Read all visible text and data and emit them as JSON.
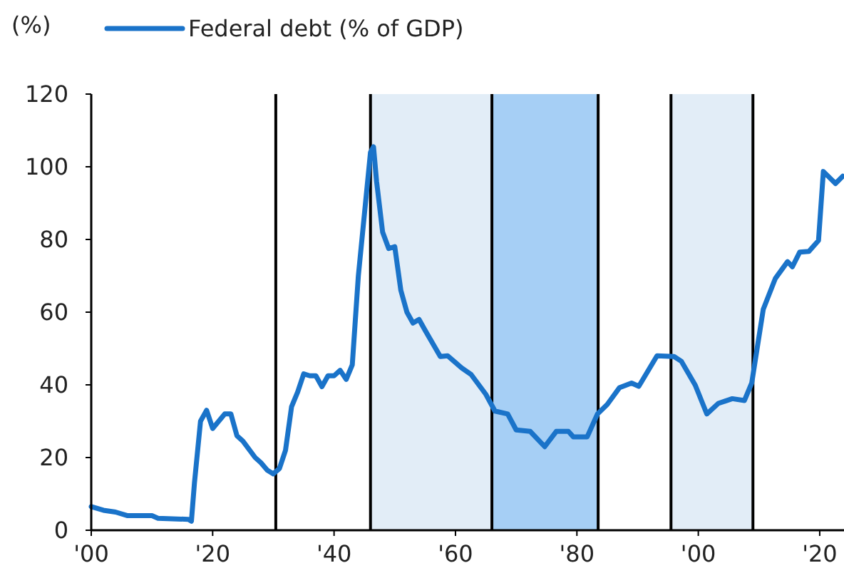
{
  "chart_data": {
    "type": "line",
    "ylabel": "(%)",
    "legend": "top",
    "x": [
      1900,
      1902,
      1904,
      1906,
      1910,
      1911,
      1916,
      1916.5,
      1917,
      1918,
      1919,
      1920,
      1921,
      1922,
      1923,
      1924,
      1925,
      1927,
      1928,
      1929,
      1930,
      1931,
      1932,
      1933,
      1934,
      1935,
      1936,
      1937,
      1938,
      1939,
      1940,
      1941,
      1942,
      1943,
      1944,
      1945,
      1946,
      1946.5,
      1947,
      1948,
      1949,
      1950,
      1951,
      1952,
      1953,
      1954,
      1955,
      1957.5,
      1958.7,
      1961,
      1962.6,
      1965,
      1966.5,
      1968.6,
      1970,
      1972.3,
      1974.7,
      1976.6,
      1978.6,
      1979.4,
      1981.7,
      1983.4,
      1985,
      1987,
      1989,
      1990.2,
      1993.2,
      1996,
      1997.2,
      1999.5,
      2001.4,
      2003.3,
      2005.6,
      2007.6,
      2008.8,
      2010.7,
      2012.7,
      2014.7,
      2015.5,
      2016.7,
      2018.2,
      2019.8,
      2020.6,
      2022.6,
      2023.8
    ],
    "series": [
      {
        "name": "Federal debt (% of GDP)",
        "color": "#1a73c9",
        "values": [
          6.5,
          5.5,
          5,
          4,
          4,
          3.3,
          3,
          2.5,
          13,
          30,
          33,
          28,
          30,
          32,
          32,
          26,
          24.5,
          20,
          18.5,
          16.5,
          15.5,
          17,
          22,
          34,
          38,
          43,
          42.5,
          42.5,
          39.5,
          42.5,
          42.5,
          44,
          41.5,
          45.5,
          70,
          87,
          104,
          105.5,
          96,
          82,
          77.5,
          78,
          66,
          60,
          57,
          58,
          55,
          47.8,
          48,
          44.7,
          42.8,
          37.4,
          32.8,
          32,
          27.6,
          27.2,
          23,
          27.2,
          27.2,
          25.7,
          25.7,
          32,
          34.6,
          39.2,
          40.5,
          39.6,
          48,
          47.8,
          46.5,
          39.9,
          32,
          34.9,
          36.2,
          35.7,
          40.5,
          60.8,
          69.3,
          73.9,
          72.5,
          76.5,
          76.7,
          79.7,
          98.7,
          95.4,
          97.4
        ]
      }
    ],
    "xlim": [
      1900,
      2024
    ],
    "xticks": [
      {
        "value": 1900,
        "label": "'00"
      },
      {
        "value": 1920,
        "label": "'20"
      },
      {
        "value": 1940,
        "label": "'40"
      },
      {
        "value": 1960,
        "label": "'60"
      },
      {
        "value": 1980,
        "label": "'80"
      },
      {
        "value": 2000,
        "label": "'00"
      },
      {
        "value": 2020,
        "label": "'20"
      }
    ],
    "ylim": [
      0,
      120
    ],
    "yticks": [
      0,
      20,
      40,
      60,
      80,
      100,
      120
    ],
    "bands": [
      {
        "axis": "x",
        "from": 1946,
        "to": 1966,
        "color": "#e2edf7"
      },
      {
        "axis": "x",
        "from": 1966,
        "to": 1983.5,
        "color": "#a6cff5"
      },
      {
        "axis": "x",
        "from": 1995.5,
        "to": 2009,
        "color": "#e2edf7"
      }
    ],
    "ref_lines": [
      {
        "axis": "x",
        "value": 1930.4,
        "color": "#000000"
      },
      {
        "axis": "x",
        "value": 1946,
        "color": "#000000"
      },
      {
        "axis": "x",
        "value": 1966,
        "color": "#000000"
      },
      {
        "axis": "x",
        "value": 1983.5,
        "color": "#000000"
      },
      {
        "axis": "x",
        "value": 1995.5,
        "color": "#000000"
      },
      {
        "axis": "x",
        "value": 2009,
        "color": "#000000"
      }
    ]
  }
}
